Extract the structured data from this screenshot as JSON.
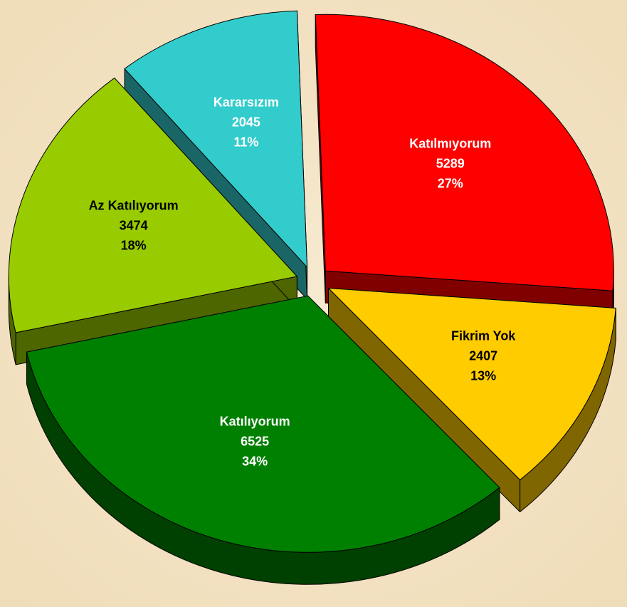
{
  "chart_data": {
    "type": "pie",
    "categories": [
      "Katılmıyorum",
      "Fikrim Yok",
      "Katılıyorum",
      "Az Katılıyorum",
      "Kararsızım"
    ],
    "values": [
      5289,
      2407,
      6525,
      3474,
      2045
    ],
    "percentages": [
      27,
      13,
      34,
      18,
      11
    ],
    "percentage_labels": [
      "27%",
      "13%",
      "34%",
      "18%",
      "11%"
    ],
    "colors": [
      "#ff0000",
      "#ffcc00",
      "#008000",
      "#99cc00",
      "#33cccc"
    ],
    "label_colors": [
      "#ffffff",
      "#000000",
      "#ffffff",
      "#000000",
      "#ffffff"
    ],
    "exploded": true,
    "three_d": true
  }
}
